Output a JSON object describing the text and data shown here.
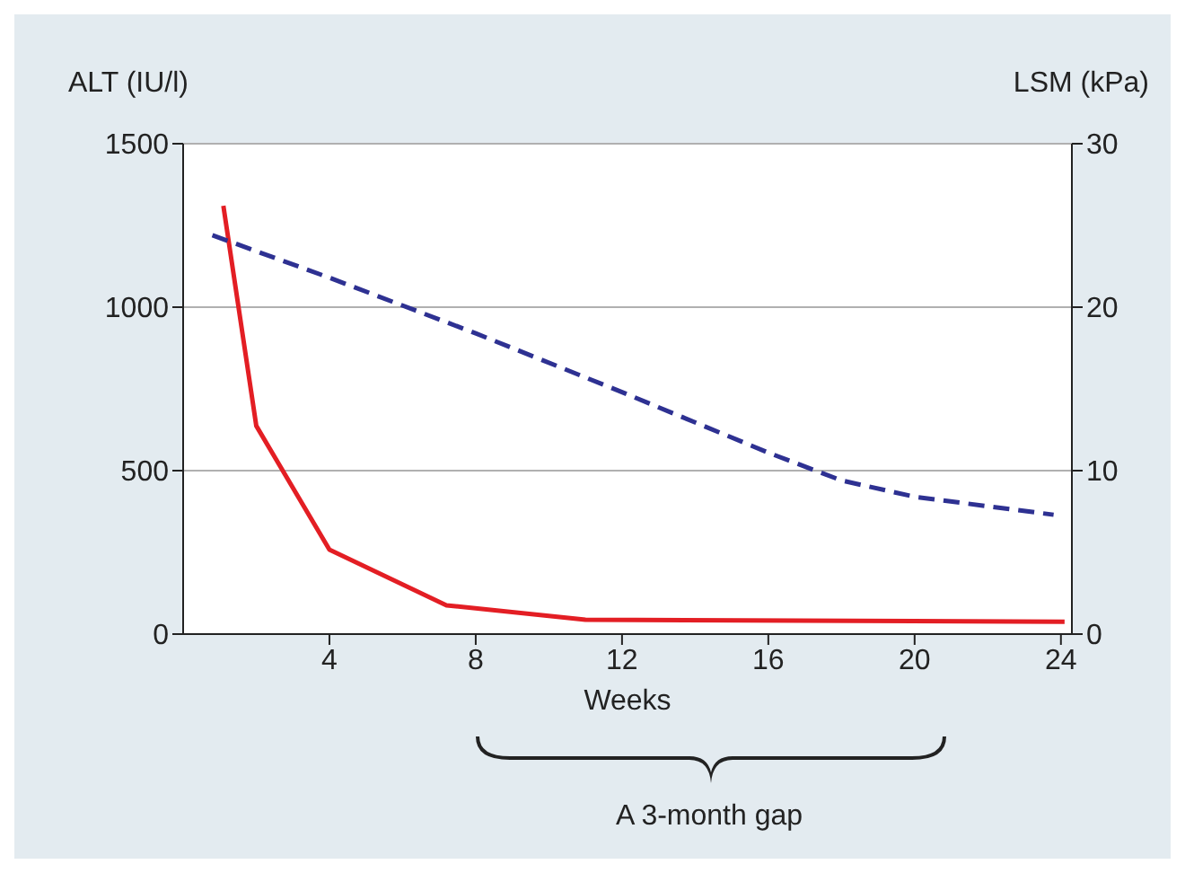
{
  "chart_data": {
    "type": "line",
    "xlabel": "Weeks",
    "ylabel": "ALT (IU/l)",
    "y2label": "LSM (kPa)",
    "xlim": [
      0,
      24.3
    ],
    "xticks": [
      4,
      8,
      12,
      16,
      20,
      24
    ],
    "ylim": [
      0,
      1500
    ],
    "yticks": [
      0,
      500,
      1000,
      1500
    ],
    "y2lim": [
      0,
      30
    ],
    "y2ticks": [
      0,
      10,
      20,
      30
    ],
    "grid": "y",
    "legend": false,
    "marker": "none",
    "annotations": [
      "A 3-month gap"
    ],
    "series": [
      {
        "color": "#e31e24",
        "line_style": "solid",
        "x": [
          1.1,
          2,
          4,
          7.2,
          11,
          24.1
        ],
        "values": [
          1310,
          637,
          258,
          88,
          44,
          38
        ]
      },
      {
        "color": "#2e3192",
        "line_style": "dashed",
        "axis": "y2",
        "x": [
          0.8,
          4,
          8,
          12,
          16,
          18,
          20,
          23.8
        ],
        "values": [
          24.4,
          21.8,
          18.4,
          14.8,
          11.1,
          9.4,
          8.4,
          7.3
        ]
      }
    ]
  }
}
